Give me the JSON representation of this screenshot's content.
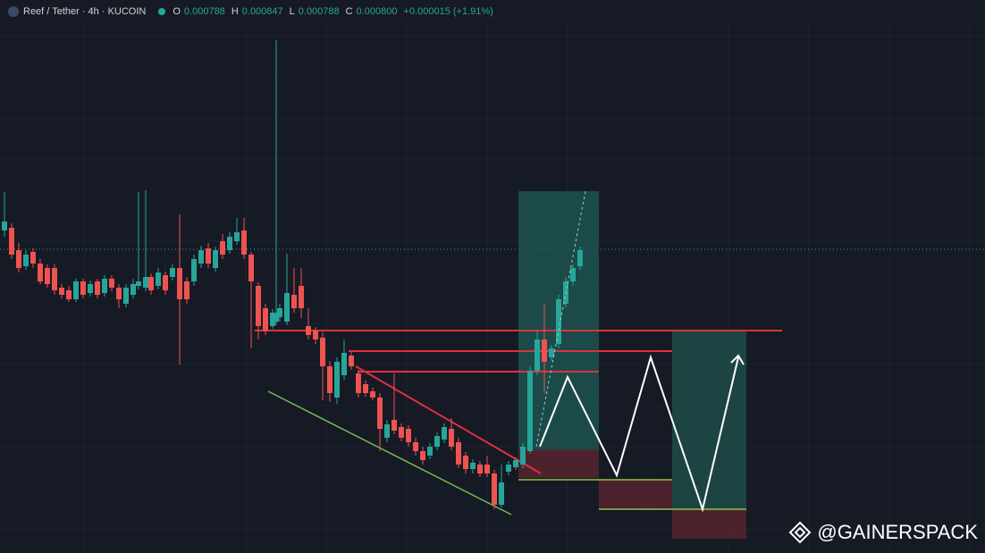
{
  "header": {
    "symbol": "Reef / Tether · 4h · KUCOIN",
    "ohlc": [
      {
        "label": "O",
        "value": "0.000788"
      },
      {
        "label": "H",
        "value": "0.000847"
      },
      {
        "label": "L",
        "value": "0.000788"
      },
      {
        "label": "C",
        "value": "0.000800"
      }
    ],
    "change": "+0.000015 (+1.91%)"
  },
  "watermark": "@GAINERSPACK"
}
